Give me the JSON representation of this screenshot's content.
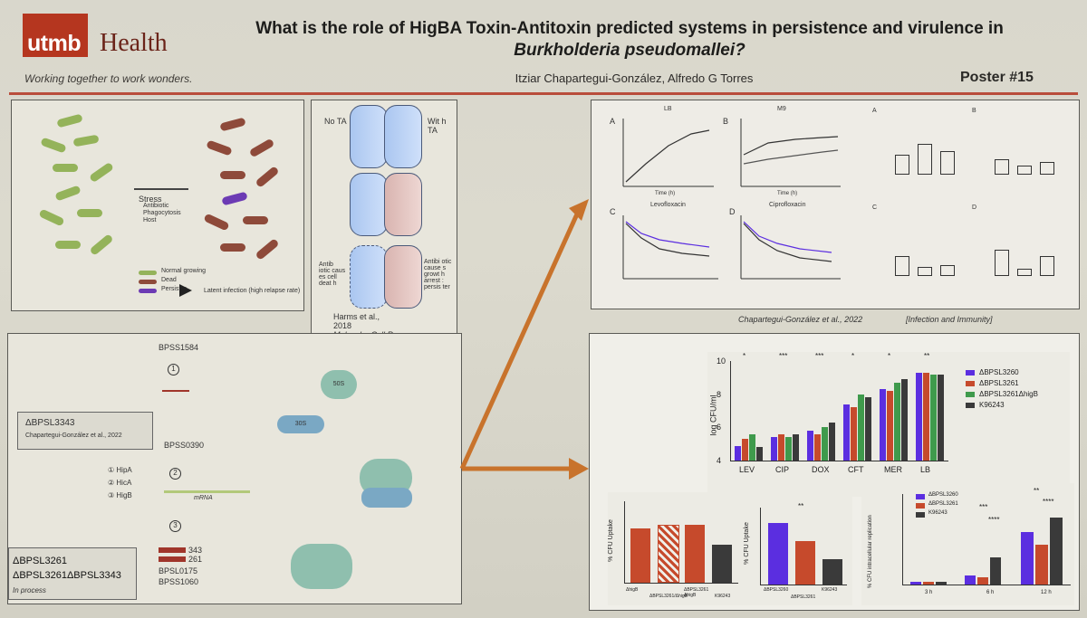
{
  "header": {
    "logo_word": "utmb",
    "logo_health": "Health",
    "tagline": "Working together to work wonders.",
    "title_line1": "What is the role of HigBA Toxin-Antitoxin predicted systems in persistence and virulence in",
    "title_line2": "Burkholderia pseudomallei?",
    "authors": "Itziar Chapartegui-González, Alfredo G Torres",
    "poster_number": "Poster #15"
  },
  "panel_persistence": {
    "stress_label": "Stress",
    "stress_items": [
      "Antibiotic",
      "Phagocytosis",
      "Host"
    ],
    "legend": [
      "Normal growing",
      "Dead",
      "Persister"
    ],
    "latent": "Latent infection (high relapse rate)"
  },
  "panel_ta": {
    "no_ta": "No TA",
    "with_ta": "Wit h TA",
    "left_caption": "Antib iotic caus es cell deat h",
    "right_caption": "Antibi otic cause s growt h arrest : persis ter",
    "citation_author": "Harms et al.,",
    "citation_year": "2018",
    "citation_journal": "Molecular Cell Rev"
  },
  "panel_mechanism": {
    "gene_top": "BPSS1584",
    "gene_mid": "BPSS0390",
    "mutant_1": "ΔBPSL3343",
    "mutant_1_ref": "Chapartegui-González et al., 2022",
    "list": [
      "HipA",
      "HicA",
      "HigB"
    ],
    "nums": [
      "1",
      "2",
      "3"
    ],
    "ribo_50s": "50S",
    "ribo_30s": "30S",
    "mrna": "mRNA",
    "mutants_2": [
      "ΔBPSL3261",
      "ΔBPSL3261ΔBPSL3343"
    ],
    "in_process": "In process",
    "bars": [
      "343",
      "261"
    ],
    "extra_genes": [
      "BPSL0175",
      "BPSS1060"
    ]
  },
  "panel_growth": {
    "sub_a": "A",
    "sub_b": "B",
    "sub_c": "C",
    "sub_d": "D",
    "lb": "LB",
    "m9": "M9",
    "levo": "Levofloxacin",
    "cipro": "Ciprofloxacin",
    "time": "Time (h)"
  },
  "citation_bottom": {
    "author": "Chapartegui-González et al., 2022",
    "journal": "[Infection and Immunity]"
  },
  "chart_data": {
    "type": "bar",
    "title": "",
    "ylabel": "log CFU/ml",
    "ylim": [
      4,
      10
    ],
    "yticks": [
      "4",
      "6",
      "8",
      "10"
    ],
    "categories": [
      "LEV",
      "CIP",
      "DOX",
      "CFT",
      "MER",
      "LB"
    ],
    "series": [
      {
        "name": "ΔBPSL3260",
        "color": "#5b2ee0",
        "values": [
          4.9,
          5.4,
          5.8,
          7.4,
          8.3,
          9.3
        ]
      },
      {
        "name": "ΔBPSL3261",
        "color": "#c64a2c",
        "values": [
          5.3,
          5.6,
          5.6,
          7.2,
          8.2,
          9.3
        ]
      },
      {
        "name": "ΔBPSL3261ΔhigB",
        "color": "#3f9a4c",
        "values": [
          5.6,
          5.4,
          6.0,
          8.0,
          8.7,
          9.2
        ]
      },
      {
        "name": "K96243",
        "color": "#3a3a3a",
        "values": [
          4.8,
          5.6,
          6.3,
          7.8,
          8.9,
          9.2
        ]
      }
    ],
    "sig": [
      "*",
      "***",
      "***",
      "*",
      "*",
      "**"
    ]
  },
  "bottom_charts": {
    "c1_ylabel": "% CFU Uptake",
    "c1_labels": [
      "ΔhigB",
      "ΔBPSL3261/ΔhigB",
      "ΔBPSL3261 ΔhigB",
      "K96243"
    ],
    "c2_ylabel": "% CFU Uptake",
    "c2_labels": [
      "ΔBPSL3260",
      "ΔBPSL3261",
      "K96243"
    ],
    "c2_sig": "**",
    "c3_ylabel": "% CFU intracellular replication",
    "c3_legend": [
      "ΔBPSL3260",
      "ΔBPSL3261",
      "K96243"
    ],
    "c3_x": [
      "3 h",
      "6 h",
      "12 h"
    ],
    "c3_sig": [
      "***",
      "****",
      "**",
      "****"
    ]
  }
}
